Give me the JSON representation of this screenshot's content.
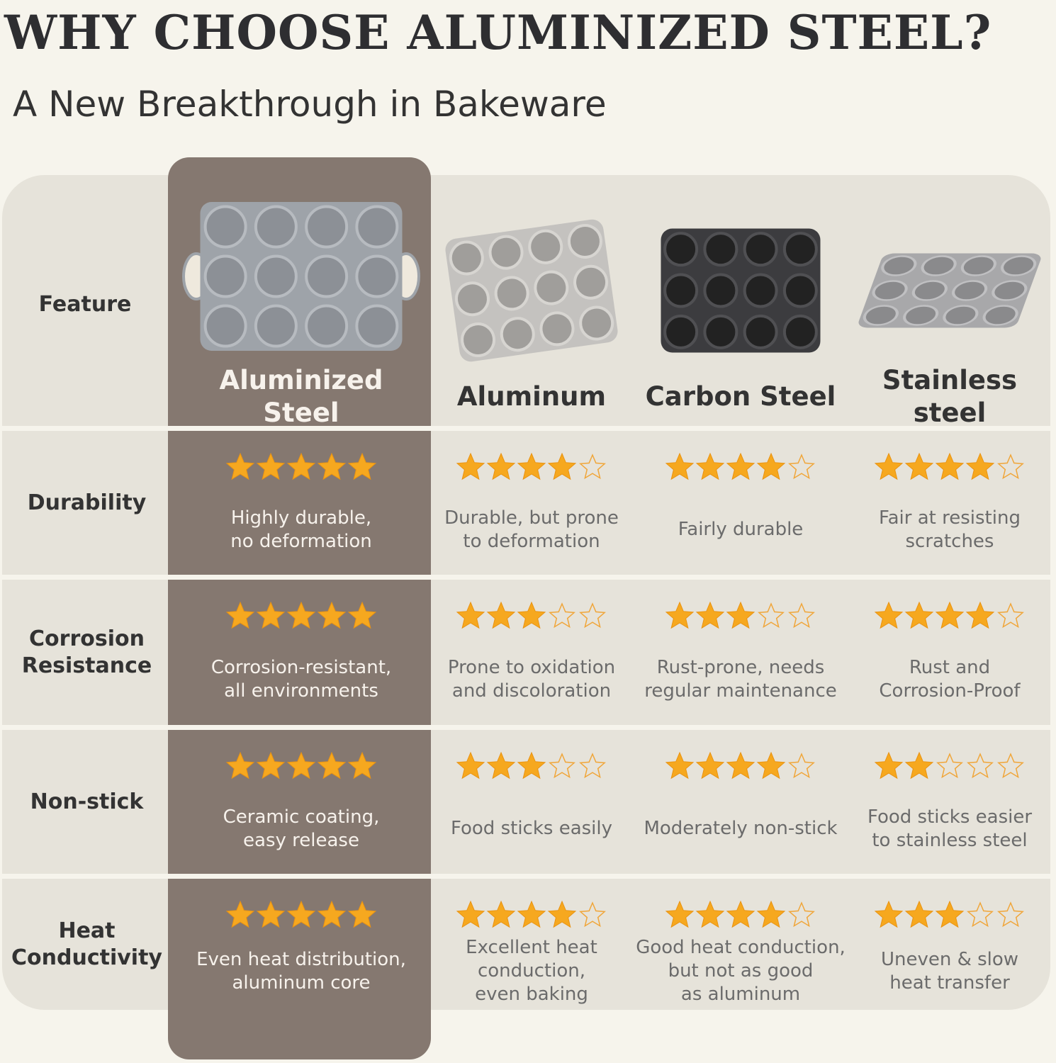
{
  "title": "WHY CHOOSE ALUMINIZED STEEL?",
  "subtitle": "A New Breakthrough in Bakeware",
  "table": {
    "header": "Feature",
    "columns": [
      "Aluminized Steel",
      "Aluminum",
      "Carbon Steel",
      "Stainless steel"
    ],
    "rating_max": 5,
    "rows": [
      {
        "feature": "Durability",
        "cells": [
          {
            "stars": 5,
            "text": "Highly durable, no deformation"
          },
          {
            "stars": 4,
            "text": "Durable, but prone to deformation"
          },
          {
            "stars": 4,
            "text": "Fairly durable"
          },
          {
            "stars": 4,
            "text": "Fair at resisting scratches"
          }
        ]
      },
      {
        "feature": "Corrosion Resistance",
        "cells": [
          {
            "stars": 5,
            "text": "Corrosion-resistant, all environments"
          },
          {
            "stars": 3,
            "text": "Prone to oxidation and discoloration"
          },
          {
            "stars": 3,
            "text": "Rust-prone, needs regular maintenance"
          },
          {
            "stars": 4,
            "text": "Rust and Corrosion-Proof"
          }
        ]
      },
      {
        "feature": "Non-stick",
        "cells": [
          {
            "stars": 5,
            "text": "Ceramic coating, easy release"
          },
          {
            "stars": 3,
            "text": "Food sticks easily"
          },
          {
            "stars": 4,
            "text": "Moderately non-stick"
          },
          {
            "stars": 2,
            "text": "Food sticks easier to stainless steel"
          }
        ]
      },
      {
        "feature": "Heat Conductivity",
        "cells": [
          {
            "stars": 5,
            "text": "Even heat distribution, aluminum core"
          },
          {
            "stars": 4,
            "text": "Excellent heat conduction, even baking"
          },
          {
            "stars": 4,
            "text": "Good heat conduction, but not as good as aluminum"
          },
          {
            "stars": 3,
            "text": "Uneven & slow heat transfer"
          }
        ]
      }
    ]
  }
}
